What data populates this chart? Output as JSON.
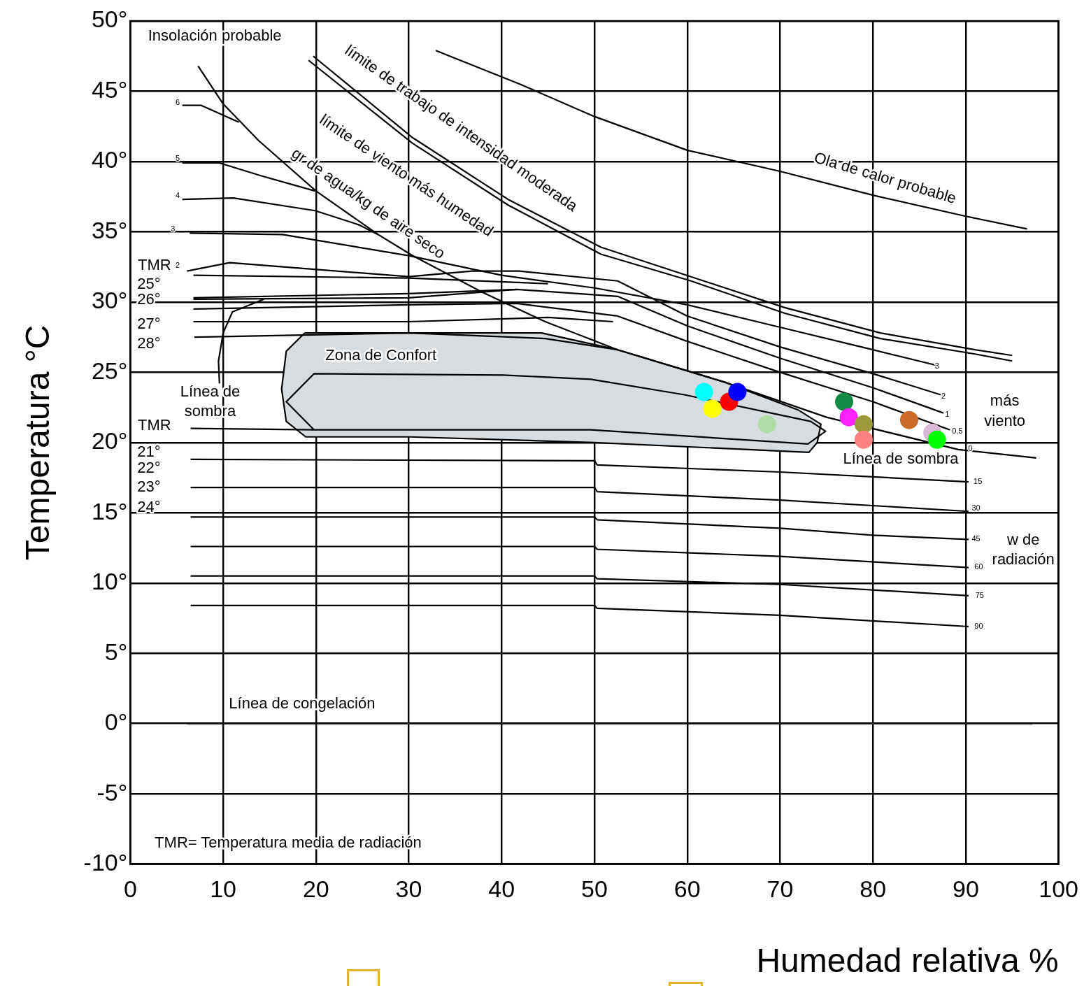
{
  "chart_data": {
    "type": "line",
    "xlabel": "Humedad relativa %",
    "ylabel": "Temperatura °C",
    "xlim": [
      0,
      100
    ],
    "xticks": [
      0,
      10,
      20,
      30,
      40,
      50,
      60,
      70,
      80,
      90,
      100
    ],
    "ylim": [
      -10,
      50
    ],
    "yticks": [
      {
        "value": -10,
        "label": "-10°"
      },
      {
        "value": -5,
        "label": "-5°"
      },
      {
        "value": 0,
        "label": "0°"
      },
      {
        "value": 5,
        "label": "5°"
      },
      {
        "value": 10,
        "label": "10°"
      },
      {
        "value": 15,
        "label": "15°"
      },
      {
        "value": 20,
        "label": "20°"
      },
      {
        "value": 25,
        "label": "25°"
      },
      {
        "value": 30,
        "label": "30°"
      },
      {
        "value": 35,
        "label": "35°"
      },
      {
        "value": 40,
        "label": "40°"
      },
      {
        "value": 45,
        "label": "45°"
      },
      {
        "value": 50,
        "label": "50°"
      }
    ],
    "grid": true,
    "legend": false,
    "series": [
      {
        "type": "area",
        "color": "#d6dce0",
        "x": [
          18.8,
          44.3,
          52.5,
          64,
          72,
          74.4,
          74,
          73.1,
          50,
          30,
          18.9,
          16.8,
          16.3,
          16.8,
          18.8
        ],
        "values": [
          27.8,
          27.8,
          26.6,
          24.3,
          22.3,
          21.3,
          20.0,
          19.3,
          20.0,
          20.4,
          20.4,
          21.5,
          23.8,
          26.5,
          27.8
        ]
      },
      {
        "type": "line",
        "color": "#000000",
        "x": [
          32.9,
          42,
          50,
          60,
          70,
          80,
          90,
          96.6
        ],
        "values": [
          47.9,
          45.5,
          43.2,
          40.8,
          39.3,
          37.6,
          36.1,
          35.2
        ]
      },
      {
        "type": "line",
        "color": "#000000",
        "x": [
          19.7,
          30.4,
          40.7,
          50.7,
          60.4,
          70.5,
          80.8,
          91,
          95
        ],
        "values": [
          47.5,
          41.7,
          37.3,
          33.9,
          31.8,
          29.6,
          27.8,
          26.6,
          26.2
        ]
      },
      {
        "type": "line",
        "color": "#000000",
        "x": [
          19.2,
          30.4,
          40.7,
          50.7,
          60.4,
          70.5,
          80.8,
          91,
          95
        ],
        "values": [
          47.2,
          41.3,
          36.9,
          33.4,
          31.5,
          29.2,
          27.4,
          26.3,
          25.8
        ]
      },
      {
        "type": "line",
        "color": "#000000",
        "x": [
          7.3,
          10,
          13.8,
          20,
          26.7,
          30.4,
          37.9,
          44.7,
          52.5
        ],
        "values": [
          46.8,
          44.1,
          41.5,
          37.9,
          34.8,
          33.3,
          30.7,
          28.6,
          26.6
        ]
      },
      {
        "type": "line",
        "color": "#000000",
        "x": [
          5.6,
          7.6,
          11.7
        ],
        "values": [
          44.0,
          44.0,
          42.8
        ]
      },
      {
        "type": "line",
        "color": "#000000",
        "x": [
          5.6,
          9.6,
          14,
          19.9
        ],
        "values": [
          39.9,
          39.9,
          39.0,
          37.9
        ]
      },
      {
        "type": "line",
        "color": "#000000",
        "x": [
          5.6,
          11.1,
          19.9,
          24.6,
          26.7
        ],
        "values": [
          37.3,
          37.4,
          36.5,
          35.5,
          34.8
        ]
      },
      {
        "type": "line",
        "color": "#000000",
        "x": [
          6.4,
          16.4,
          30,
          40,
          50,
          60,
          70,
          80,
          86.8
        ],
        "values": [
          34.9,
          34.8,
          33.3,
          31.9,
          31.0,
          29.8,
          28.2,
          26.6,
          25.5
        ]
      },
      {
        "type": "line",
        "color": "#000000",
        "x": [
          6.1,
          10.7,
          30,
          36.8,
          41.9,
          52.5,
          60,
          70,
          80,
          87.3
        ],
        "values": [
          32.2,
          32.8,
          31.8,
          32.2,
          32.2,
          31.5,
          29.0,
          26.8,
          24.9,
          23.4
        ]
      },
      {
        "type": "line",
        "color": "#000000",
        "x": [
          6.8,
          30,
          41.6,
          52.5,
          60,
          70,
          80,
          87.6
        ],
        "values": [
          30.3,
          30.6,
          30.9,
          30.4,
          28.3,
          26.0,
          23.9,
          22.1
        ]
      },
      {
        "type": "line",
        "color": "#000000",
        "x": [
          6.8,
          30,
          41.6,
          52.5,
          60,
          70,
          80,
          88.3
        ],
        "values": [
          29.5,
          29.8,
          29.9,
          29.0,
          27.2,
          25.0,
          22.9,
          20.9
        ]
      },
      {
        "type": "line",
        "color": "#000000",
        "x": [
          6.9,
          30,
          44.7,
          52.5,
          64,
          75,
          89.2,
          97.6
        ],
        "values": [
          27.5,
          27.8,
          27.4,
          26.6,
          24.3,
          21.8,
          19.5,
          18.9
        ]
      },
      {
        "type": "line",
        "color": "#000000",
        "x": [
          6.8,
          30,
          45
        ],
        "values": [
          31.9,
          31.7,
          31.3
        ]
      },
      {
        "type": "line",
        "color": "#000000",
        "x": [
          6.8,
          30,
          41.6
        ],
        "values": [
          30.2,
          30.3,
          30.9
        ]
      },
      {
        "type": "line",
        "color": "#000000",
        "x": [
          6.8,
          30,
          45,
          52
        ],
        "values": [
          28.6,
          28.6,
          28.9,
          28.6
        ]
      },
      {
        "type": "line",
        "color": "#000000",
        "x": [
          14.4,
          11,
          10,
          9.5,
          9.6
        ],
        "values": [
          30.2,
          29.3,
          27.8,
          25.8,
          24.2
        ]
      },
      {
        "type": "line",
        "color": "#000000",
        "x": [
          6.5,
          19.8,
          49.6,
          73,
          74.9,
          73.3,
          59.7,
          49.6,
          40.2,
          19.8,
          16.8,
          19.8
        ],
        "values": [
          21.0,
          20.9,
          20.9,
          19.9,
          20.8,
          21.5,
          23.4,
          24.5,
          24.8,
          24.9,
          22.9,
          20.9
        ]
      },
      {
        "type": "line",
        "color": "#000000",
        "x": [
          6.5,
          50,
          50.3,
          70,
          90.3
        ],
        "values": [
          18.8,
          18.7,
          18.4,
          17.9,
          17.2
        ]
      },
      {
        "type": "line",
        "color": "#000000",
        "x": [
          6.5,
          50,
          50.3,
          70,
          90.3
        ],
        "values": [
          16.8,
          16.8,
          16.5,
          15.9,
          15.1
        ]
      },
      {
        "type": "line",
        "color": "#000000",
        "x": [
          6.5,
          50,
          50.3,
          70,
          80,
          90.3
        ],
        "values": [
          14.7,
          14.7,
          14.5,
          13.9,
          13.4,
          13.1
        ]
      },
      {
        "type": "line",
        "color": "#000000",
        "x": [
          6.5,
          50,
          50.3,
          70,
          90.3
        ],
        "values": [
          12.6,
          12.6,
          12.4,
          11.9,
          11.1
        ]
      },
      {
        "type": "line",
        "color": "#000000",
        "x": [
          6.5,
          50,
          50.3,
          70,
          90.3
        ],
        "values": [
          10.5,
          10.5,
          10.3,
          9.9,
          9.1
        ]
      },
      {
        "type": "line",
        "color": "#000000",
        "x": [
          6.5,
          50,
          50.3,
          70,
          90.3
        ],
        "values": [
          8.4,
          8.4,
          8.2,
          7.7,
          6.9
        ]
      },
      {
        "type": "line",
        "color": "#000000",
        "x": [
          6.1,
          97.2
        ],
        "values": [
          0,
          0
        ]
      },
      {
        "type": "scatter",
        "marker": "circle",
        "x": [
          61.8,
          64.5,
          65.4,
          62.7,
          68.6,
          76.9,
          77.4,
          79.0,
          79.0,
          83.9,
          86.4,
          86.9
        ],
        "values": [
          23.6,
          22.9,
          23.6,
          22.4,
          21.3,
          22.9,
          21.8,
          21.3,
          20.2,
          21.6,
          20.7,
          20.2
        ],
        "colors": [
          "#00ffff",
          "#ff0000",
          "#0000ff",
          "#ffff00",
          "#b0dca8",
          "#138a45",
          "#ff22ff",
          "#9a9a3a",
          "#ff8080",
          "#cc6a2a",
          "#dbb7d8",
          "#00ff00"
        ]
      }
    ],
    "annotations": [
      "Insolación probable",
      "límite de trabajo de intensidad moderada",
      "límite de viento más humedad",
      "gr de agua/kg de aire seco",
      "Ola de calor probable",
      "Zona de Confort",
      "Línea de sombra",
      "TMR",
      "25°",
      "26°",
      "27°",
      "28°",
      "TMR",
      "21°",
      "22°",
      "23°",
      "24°",
      "Línea de sombra",
      "más viento",
      "w de radiación",
      "Línea de congelación",
      "TMR= Temperatura media de radiación",
      "6",
      "5",
      "4",
      "3",
      "2",
      "3",
      "2",
      "1",
      "0.5",
      "0",
      "15",
      "30",
      "45",
      "60",
      "75",
      "90"
    ]
  }
}
